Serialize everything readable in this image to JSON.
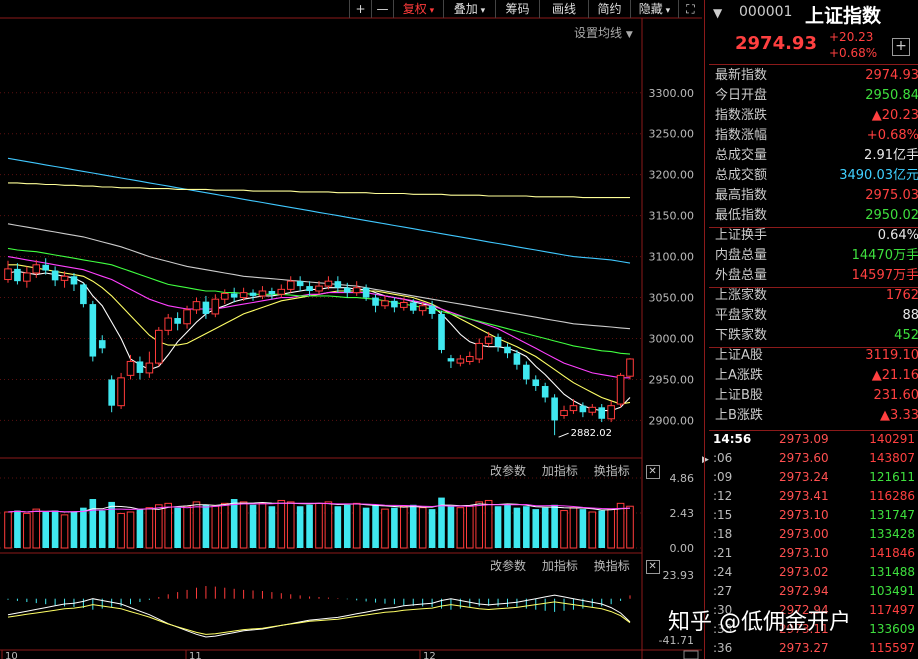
{
  "toolbar": {
    "items": [
      "+",
      "—",
      "复权",
      "叠加",
      "筹码",
      "画线",
      "简约",
      "隐藏",
      "⛶"
    ],
    "setting_label": "设置均线"
  },
  "indicator_tools": [
    "改参数",
    "加指标",
    "换指标"
  ],
  "chart_data": {
    "type": "candlestick",
    "y_axis_labels": [
      "3300.00",
      "3250.00",
      "3200.00",
      "3150.00",
      "3100.00",
      "3050.00",
      "3000.00",
      "2950.00",
      "2900.00"
    ],
    "ylim": [
      2870,
      3340
    ],
    "low_annotation": "2882.02",
    "x_labels": [
      "10",
      "11",
      "12"
    ],
    "volume_axis_labels": [
      "4.86",
      "2.43",
      "0.00"
    ],
    "macd_axis_labels": [
      "23.93",
      "-41.71"
    ],
    "candles": [
      [
        3072,
        3085,
        3095,
        3068
      ],
      [
        3085,
        3070,
        3092,
        3066
      ],
      [
        3070,
        3080,
        3088,
        3062
      ],
      [
        3080,
        3090,
        3096,
        3074
      ],
      [
        3090,
        3083,
        3098,
        3078
      ],
      [
        3083,
        3071,
        3088,
        3064
      ],
      [
        3071,
        3076,
        3082,
        3062
      ],
      [
        3076,
        3066,
        3080,
        3058
      ],
      [
        3066,
        3042,
        3068,
        3038
      ],
      [
        3042,
        2978,
        3046,
        2972
      ],
      [
        2998,
        2988,
        3004,
        2982
      ],
      [
        2950,
        2918,
        2955,
        2910
      ],
      [
        2918,
        2952,
        2958,
        2914
      ],
      [
        2955,
        2972,
        2980,
        2950
      ],
      [
        2972,
        2958,
        2978,
        2950
      ],
      [
        2958,
        2970,
        2984,
        2952
      ],
      [
        2970,
        3010,
        3014,
        2966
      ],
      [
        3010,
        3025,
        3030,
        3004
      ],
      [
        3025,
        3018,
        3032,
        3010
      ],
      [
        3018,
        3035,
        3040,
        3012
      ],
      [
        3035,
        3045,
        3050,
        3030
      ],
      [
        3045,
        3030,
        3052,
        3024
      ],
      [
        3030,
        3048,
        3054,
        3026
      ],
      [
        3048,
        3055,
        3060,
        3042
      ],
      [
        3055,
        3050,
        3062,
        3044
      ],
      [
        3050,
        3056,
        3062,
        3046
      ],
      [
        3056,
        3052,
        3060,
        3046
      ],
      [
        3052,
        3058,
        3064,
        3048
      ],
      [
        3058,
        3054,
        3062,
        3048
      ],
      [
        3054,
        3060,
        3066,
        3050
      ],
      [
        3060,
        3070,
        3076,
        3056
      ],
      [
        3070,
        3064,
        3076,
        3058
      ],
      [
        3064,
        3058,
        3070,
        3052
      ],
      [
        3058,
        3064,
        3070,
        3054
      ],
      [
        3064,
        3070,
        3076,
        3060
      ],
      [
        3070,
        3062,
        3076,
        3056
      ],
      [
        3062,
        3056,
        3068,
        3050
      ],
      [
        3056,
        3062,
        3070,
        3052
      ],
      [
        3062,
        3050,
        3066,
        3046
      ],
      [
        3050,
        3040,
        3054,
        3032
      ],
      [
        3040,
        3046,
        3052,
        3036
      ],
      [
        3046,
        3038,
        3050,
        3032
      ],
      [
        3038,
        3044,
        3050,
        3034
      ],
      [
        3044,
        3034,
        3048,
        3030
      ],
      [
        3034,
        3040,
        3044,
        3028
      ],
      [
        3040,
        3030,
        3046,
        3024
      ],
      [
        3030,
        2986,
        3034,
        2982
      ],
      [
        2976,
        2972,
        2980,
        2964
      ],
      [
        2970,
        2975,
        2980,
        2966
      ],
      [
        2972,
        2978,
        2984,
        2968
      ],
      [
        2975,
        2994,
        3000,
        2970
      ],
      [
        2994,
        3002,
        3008,
        2990
      ],
      [
        3002,
        2990,
        3006,
        2984
      ],
      [
        2990,
        2982,
        2994,
        2976
      ],
      [
        2982,
        2968,
        2986,
        2962
      ],
      [
        2968,
        2950,
        2972,
        2944
      ],
      [
        2950,
        2942,
        2955,
        2936
      ],
      [
        2942,
        2928,
        2946,
        2922
      ],
      [
        2928,
        2900,
        2932,
        2882
      ],
      [
        2906,
        2912,
        2918,
        2902
      ],
      [
        2912,
        2918,
        2926,
        2908
      ],
      [
        2918,
        2910,
        2922,
        2904
      ],
      [
        2910,
        2916,
        2920,
        2906
      ],
      [
        2916,
        2902,
        2920,
        2898
      ],
      [
        2902,
        2918,
        2924,
        2898
      ],
      [
        2920,
        2955,
        2958,
        2916
      ],
      [
        2954,
        2975,
        2976,
        2950
      ]
    ],
    "ma_lines": [
      {
        "color": "#ffffff",
        "values": [
          3080,
          3082,
          3080,
          3078,
          3080,
          3078,
          3076,
          3074,
          3068,
          3052,
          3040,
          3020,
          3000,
          2975,
          2968,
          2962,
          2966,
          2980,
          2996,
          3008,
          3020,
          3030,
          3036,
          3040,
          3045,
          3048,
          3050,
          3052,
          3052,
          3054,
          3056,
          3058,
          3060,
          3060,
          3062,
          3062,
          3062,
          3060,
          3060,
          3056,
          3052,
          3050,
          3048,
          3045,
          3042,
          3040,
          3030,
          3018,
          3005,
          2996,
          2992,
          2990,
          2990,
          2988,
          2984,
          2978,
          2966,
          2956,
          2944,
          2932,
          2924,
          2918,
          2914,
          2912,
          2912,
          2916,
          2928
        ]
      },
      {
        "color": "#ffff66",
        "values": [
          3090,
          3090,
          3088,
          3086,
          3084,
          3082,
          3080,
          3078,
          3076,
          3070,
          3062,
          3052,
          3040,
          3028,
          3016,
          3004,
          2996,
          2992,
          2992,
          2994,
          3000,
          3006,
          3012,
          3018,
          3024,
          3030,
          3034,
          3038,
          3042,
          3046,
          3048,
          3050,
          3052,
          3054,
          3056,
          3058,
          3058,
          3058,
          3058,
          3058,
          3056,
          3054,
          3052,
          3050,
          3046,
          3042,
          3036,
          3030,
          3024,
          3018,
          3012,
          3006,
          3000,
          2995,
          2990,
          2984,
          2978,
          2970,
          2962,
          2954,
          2946,
          2940,
          2934,
          2928,
          2924,
          2920,
          2922
        ]
      },
      {
        "color": "#ff40ff",
        "values": [
          3100,
          3098,
          3096,
          3094,
          3092,
          3090,
          3088,
          3086,
          3084,
          3080,
          3076,
          3072,
          3066,
          3060,
          3054,
          3048,
          3044,
          3040,
          3038,
          3036,
          3036,
          3036,
          3036,
          3038,
          3040,
          3042,
          3044,
          3046,
          3048,
          3050,
          3050,
          3052,
          3054,
          3054,
          3056,
          3056,
          3056,
          3056,
          3056,
          3054,
          3052,
          3050,
          3048,
          3046,
          3044,
          3040,
          3036,
          3032,
          3028,
          3024,
          3020,
          3016,
          3012,
          3006,
          3000,
          2994,
          2988,
          2982,
          2976,
          2970,
          2966,
          2962,
          2958,
          2956,
          2954,
          2952,
          2952
        ]
      },
      {
        "color": "#40ff40",
        "values": [
          3110,
          3108,
          3107,
          3106,
          3104,
          3102,
          3100,
          3098,
          3096,
          3094,
          3092,
          3090,
          3086,
          3082,
          3078,
          3074,
          3070,
          3066,
          3064,
          3062,
          3060,
          3058,
          3058,
          3056,
          3056,
          3055,
          3054,
          3054,
          3054,
          3054,
          3053,
          3052,
          3052,
          3052,
          3052,
          3051,
          3050,
          3050,
          3049,
          3048,
          3046,
          3044,
          3042,
          3040,
          3038,
          3036,
          3033,
          3030,
          3027,
          3024,
          3021,
          3018,
          3015,
          3012,
          3009,
          3006,
          3003,
          3000,
          2997,
          2994,
          2991,
          2989,
          2987,
          2985,
          2984,
          2982,
          2981
        ]
      },
      {
        "color": "#cccccc",
        "values": [
          3140,
          3138,
          3136,
          3134,
          3132,
          3130,
          3128,
          3126,
          3124,
          3121,
          3118,
          3115,
          3112,
          3108,
          3104,
          3100,
          3097,
          3094,
          3091,
          3088,
          3086,
          3084,
          3082,
          3080,
          3078,
          3076,
          3075,
          3074,
          3073,
          3072,
          3071,
          3070,
          3069,
          3068,
          3067,
          3066,
          3065,
          3064,
          3062,
          3060,
          3058,
          3056,
          3054,
          3052,
          3050,
          3048,
          3046,
          3044,
          3042,
          3040,
          3038,
          3036,
          3034,
          3032,
          3030,
          3028,
          3026,
          3024,
          3022,
          3020,
          3018,
          3017,
          3016,
          3015,
          3014,
          3013,
          3012
        ]
      },
      {
        "color": "#40c8ff",
        "values": [
          3220,
          3218,
          3216,
          3214,
          3212,
          3210,
          3208,
          3206,
          3204,
          3202,
          3200,
          3198,
          3196,
          3194,
          3192,
          3190,
          3188,
          3186,
          3184,
          3182,
          3180,
          3178,
          3176,
          3174,
          3172,
          3170,
          3168,
          3166,
          3164,
          3162,
          3160,
          3158,
          3156,
          3154,
          3152,
          3150,
          3148,
          3146,
          3144,
          3142,
          3140,
          3138,
          3136,
          3134,
          3132,
          3130,
          3128,
          3126,
          3124,
          3122,
          3120,
          3118,
          3116,
          3114,
          3112,
          3110,
          3108,
          3106,
          3104,
          3102,
          3100,
          3099,
          3098,
          3097,
          3096,
          3094,
          3092
        ]
      },
      {
        "color": "#ffff99",
        "values": [
          3190,
          3190,
          3189,
          3189,
          3188,
          3188,
          3187,
          3187,
          3186,
          3186,
          3185,
          3185,
          3184,
          3184,
          3184,
          3183,
          3183,
          3183,
          3182,
          3182,
          3182,
          3182,
          3181,
          3181,
          3181,
          3181,
          3180,
          3180,
          3180,
          3180,
          3180,
          3179,
          3179,
          3179,
          3179,
          3178,
          3178,
          3178,
          3178,
          3177,
          3177,
          3177,
          3177,
          3176,
          3176,
          3176,
          3176,
          3175,
          3175,
          3175,
          3175,
          3174,
          3174,
          3174,
          3174,
          3174,
          3173,
          3173,
          3173,
          3173,
          3173,
          3172,
          3172,
          3172,
          3172,
          3172,
          3172
        ]
      }
    ],
    "volumes": [
      2.5,
      2.6,
      2.4,
      2.7,
      2.5,
      2.6,
      2.3,
      2.5,
      2.8,
      3.4,
      2.6,
      3.2,
      2.4,
      2.5,
      2.7,
      2.8,
      3.0,
      3.1,
      2.8,
      2.9,
      3.2,
      3.0,
      2.9,
      3.1,
      3.4,
      3.2,
      3.0,
      3.1,
      2.9,
      3.3,
      3.2,
      2.9,
      3.0,
      3.1,
      3.2,
      2.9,
      3.0,
      3.1,
      2.8,
      3.0,
      2.7,
      2.8,
      2.9,
      3.0,
      2.8,
      2.7,
      3.5,
      2.9,
      2.8,
      2.9,
      3.2,
      3.3,
      2.9,
      3.0,
      2.8,
      2.9,
      2.7,
      2.8,
      3.0,
      2.6,
      2.8,
      2.7,
      2.5,
      2.6,
      2.7,
      3.1,
      2.9
    ],
    "macd": [
      -2,
      -4,
      -6,
      -8,
      -10,
      -12,
      -14,
      -15,
      -17,
      -20,
      -18,
      -16,
      -14,
      -10,
      -6,
      -2,
      3,
      8,
      12,
      16,
      20,
      23,
      22,
      20,
      18,
      16,
      15,
      14,
      12,
      10,
      8,
      6,
      4,
      3,
      2,
      1,
      -1,
      -3,
      -5,
      -7,
      -9,
      -10,
      -12,
      -13,
      -14,
      -15,
      -18,
      -20,
      -18,
      -16,
      -14,
      -13,
      -14,
      -15,
      -16,
      -18,
      -20,
      -22,
      -24,
      -22,
      -20,
      -18,
      -16,
      -14,
      -10,
      -4,
      6
    ]
  },
  "quote": {
    "code": "000001",
    "name": "上证指数",
    "price": "2974.93",
    "change": "+20.23",
    "change_pct": "+0.68%",
    "rows1": [
      {
        "k": "最新指数",
        "v": "2974.93",
        "c": "red"
      },
      {
        "k": "今日开盘",
        "v": "2950.84",
        "c": "green"
      },
      {
        "k": "指数涨跌",
        "v": "▲20.23",
        "c": "red"
      },
      {
        "k": "指数涨幅",
        "v": "+0.68%",
        "c": "red"
      },
      {
        "k": "总成交量",
        "v": "2.91亿手",
        "c": "white"
      },
      {
        "k": "总成交额",
        "v": "3490.03亿元",
        "c": "blue"
      },
      {
        "k": "最高指数",
        "v": "2975.03",
        "c": "red"
      },
      {
        "k": "最低指数",
        "v": "2950.02",
        "c": "green"
      }
    ],
    "rows2": [
      {
        "k": "上证换手",
        "v": "0.64%",
        "c": "white"
      },
      {
        "k": "内盘总量",
        "v": "14470万手",
        "c": "green"
      },
      {
        "k": "外盘总量",
        "v": "14597万手",
        "c": "red"
      }
    ],
    "rows3": [
      {
        "k": "上涨家数",
        "v": "1762",
        "c": "red"
      },
      {
        "k": "平盘家数",
        "v": "88",
        "c": "white"
      },
      {
        "k": "下跌家数",
        "v": "452",
        "c": "green"
      }
    ],
    "rows4": [
      {
        "k": "上证A股",
        "v": "3119.10",
        "c": "red"
      },
      {
        "k": "上A涨跌",
        "v": "▲21.16",
        "c": "red"
      },
      {
        "k": "上证B股",
        "v": "231.60",
        "c": "red"
      },
      {
        "k": "上B涨跌",
        "v": "▲3.33",
        "c": "red"
      }
    ]
  },
  "ticks": [
    {
      "t": "14:56",
      "p": "2973.09",
      "v": "140291",
      "c": "red"
    },
    {
      "t": ":06",
      "p": "2973.60",
      "v": "143807",
      "c": "red"
    },
    {
      "t": ":09",
      "p": "2973.24",
      "v": "121611",
      "c": "green"
    },
    {
      "t": ":12",
      "p": "2973.41",
      "v": "116286",
      "c": "red"
    },
    {
      "t": ":15",
      "p": "2973.10",
      "v": "131747",
      "c": "green"
    },
    {
      "t": ":18",
      "p": "2973.00",
      "v": "133428",
      "c": "green"
    },
    {
      "t": ":21",
      "p": "2973.10",
      "v": "141846",
      "c": "red"
    },
    {
      "t": ":24",
      "p": "2973.02",
      "v": "131488",
      "c": "green"
    },
    {
      "t": ":27",
      "p": "2972.94",
      "v": "103491",
      "c": "green"
    },
    {
      "t": ":30",
      "p": "2972.94",
      "v": "117497",
      "c": "red"
    },
    {
      "t": ":33",
      "p": "2973.11",
      "v": "133609",
      "c": "green"
    },
    {
      "t": ":36",
      "p": "2973.27",
      "v": "115597",
      "c": "red"
    }
  ],
  "watermark": "知乎 @低佣金开户"
}
